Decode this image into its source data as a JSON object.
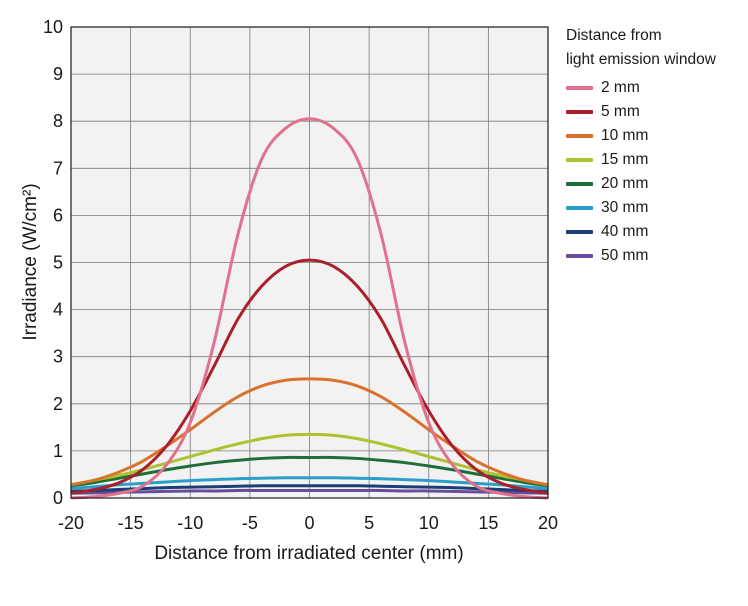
{
  "chart_data": {
    "type": "line",
    "xlabel": "Distance from irradiated center (mm)",
    "ylabel": "Irradiance (W/cm²)",
    "xlim": [
      -20,
      20
    ],
    "ylim": [
      0,
      10
    ],
    "xticks": [
      "-20",
      "-15",
      "-10",
      "-5",
      "0",
      "5",
      "10",
      "15",
      "20"
    ],
    "yticks": [
      "0",
      "1",
      "2",
      "3",
      "4",
      "5",
      "6",
      "7",
      "8",
      "9",
      "10"
    ],
    "grid": true,
    "legend": {
      "title_line1": "Distance from",
      "title_line2": "light emission window",
      "placement": "right"
    },
    "x": [
      -20,
      -18,
      -16,
      -14,
      -12,
      -10,
      -8,
      -6,
      -4,
      -2,
      0,
      2,
      4,
      6,
      8,
      10,
      12,
      14,
      16,
      18,
      20
    ],
    "series": [
      {
        "name": "2 mm",
        "color": "#E0718F",
        "values": [
          0.0,
          0.03,
          0.1,
          0.25,
          0.7,
          1.6,
          3.3,
          5.6,
          7.2,
          7.85,
          8.05,
          7.85,
          7.2,
          5.6,
          3.3,
          1.6,
          0.7,
          0.25,
          0.1,
          0.03,
          0.0
        ]
      },
      {
        "name": "5 mm",
        "color": "#A91F2C",
        "values": [
          0.1,
          0.18,
          0.32,
          0.6,
          1.1,
          1.85,
          2.8,
          3.8,
          4.5,
          4.92,
          5.05,
          4.92,
          4.5,
          3.8,
          2.8,
          1.85,
          1.1,
          0.6,
          0.32,
          0.18,
          0.1
        ]
      },
      {
        "name": "10 mm",
        "color": "#D9722E",
        "values": [
          0.28,
          0.38,
          0.55,
          0.78,
          1.1,
          1.45,
          1.82,
          2.15,
          2.38,
          2.5,
          2.53,
          2.5,
          2.38,
          2.15,
          1.82,
          1.45,
          1.1,
          0.78,
          0.55,
          0.38,
          0.28
        ]
      },
      {
        "name": "15 mm",
        "color": "#AFC12E",
        "values": [
          0.28,
          0.38,
          0.48,
          0.6,
          0.74,
          0.88,
          1.02,
          1.15,
          1.26,
          1.33,
          1.35,
          1.33,
          1.26,
          1.15,
          1.02,
          0.88,
          0.74,
          0.6,
          0.48,
          0.38,
          0.28
        ]
      },
      {
        "name": "20 mm",
        "color": "#1E6E3A",
        "values": [
          0.26,
          0.33,
          0.42,
          0.51,
          0.6,
          0.68,
          0.75,
          0.8,
          0.84,
          0.86,
          0.86,
          0.86,
          0.84,
          0.8,
          0.75,
          0.68,
          0.6,
          0.51,
          0.42,
          0.33,
          0.26
        ]
      },
      {
        "name": "30 mm",
        "color": "#2B9FC9",
        "values": [
          0.2,
          0.24,
          0.28,
          0.31,
          0.34,
          0.37,
          0.39,
          0.41,
          0.42,
          0.43,
          0.43,
          0.43,
          0.42,
          0.41,
          0.39,
          0.37,
          0.34,
          0.31,
          0.28,
          0.24,
          0.2
        ]
      },
      {
        "name": "40 mm",
        "color": "#1B3F72",
        "values": [
          0.14,
          0.16,
          0.18,
          0.2,
          0.22,
          0.23,
          0.24,
          0.25,
          0.26,
          0.26,
          0.26,
          0.26,
          0.26,
          0.25,
          0.24,
          0.23,
          0.22,
          0.2,
          0.18,
          0.16,
          0.14
        ]
      },
      {
        "name": "50 mm",
        "color": "#6A4C9C",
        "values": [
          0.1,
          0.11,
          0.12,
          0.13,
          0.14,
          0.15,
          0.15,
          0.16,
          0.16,
          0.16,
          0.16,
          0.16,
          0.16,
          0.16,
          0.15,
          0.15,
          0.14,
          0.13,
          0.12,
          0.11,
          0.1
        ]
      }
    ]
  }
}
